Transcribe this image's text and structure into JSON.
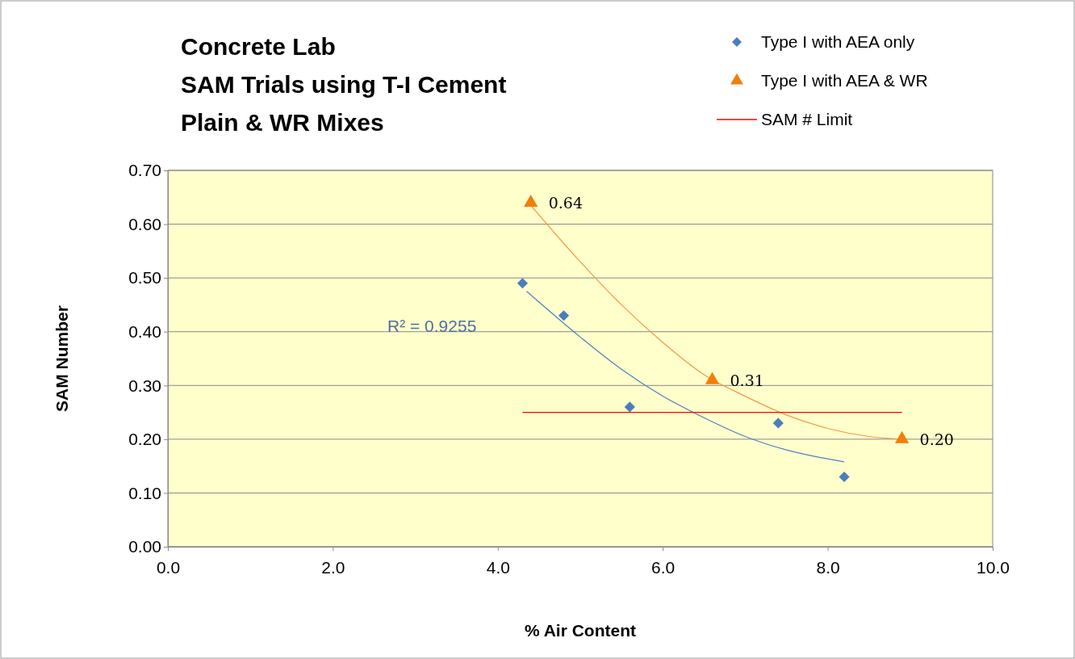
{
  "chart_data": {
    "type": "line",
    "title": "Concrete Lab",
    "subtitle": "SAM Trials using T-I Cement\nPlain & WR Mixes",
    "xlabel": "% Air Content",
    "ylabel": "SAM Number",
    "xlim": [
      0,
      10
    ],
    "xticks": [
      {
        "value": 0,
        "label": "0.0"
      },
      {
        "value": 2,
        "label": "2.0"
      },
      {
        "value": 4,
        "label": "4.0"
      },
      {
        "value": 6,
        "label": "6.0"
      },
      {
        "value": 8,
        "label": "8.0"
      },
      {
        "value": 10,
        "label": "10.0"
      }
    ],
    "ylim": [
      0,
      0.7
    ],
    "yticks": [
      {
        "value": 0,
        "label": "0.00"
      },
      {
        "value": 0.1,
        "label": "0.10"
      },
      {
        "value": 0.2,
        "label": "0.20"
      },
      {
        "value": 0.3,
        "label": "0.30"
      },
      {
        "value": 0.4,
        "label": "0.40"
      },
      {
        "value": 0.5,
        "label": "0.50"
      },
      {
        "value": 0.6,
        "label": "0.60"
      },
      {
        "value": 0.7,
        "label": "0.70"
      }
    ],
    "grid": "y",
    "legend": "top right",
    "series": [
      {
        "marker": "none",
        "color": "#4f81bd",
        "x": [
          4.35,
          5.0,
          5.5,
          6.0,
          6.5,
          7.0,
          7.5,
          8.2
        ],
        "values": [
          0.475,
          0.39,
          0.33,
          0.28,
          0.24,
          0.205,
          0.18,
          0.158
        ]
      },
      {
        "marker": "none",
        "color": "#f79646",
        "x": [
          4.4,
          5.0,
          5.5,
          6.0,
          6.5,
          7.0,
          7.5,
          8.0,
          8.5,
          8.9
        ],
        "values": [
          0.635,
          0.53,
          0.45,
          0.38,
          0.32,
          0.28,
          0.245,
          0.22,
          0.205,
          0.2
        ]
      },
      {
        "name": "Type I with AEA only",
        "type": "scatter",
        "marker": "diamond",
        "color": "#4a7ebb",
        "x": [
          4.3,
          4.8,
          5.6,
          7.4,
          8.2
        ],
        "values": [
          0.49,
          0.43,
          0.26,
          0.23,
          0.13
        ]
      },
      {
        "name": "Type I with AEA & WR",
        "type": "scatter",
        "marker": "triangle",
        "color": "#f07f09",
        "x": [
          4.4,
          6.6,
          8.9
        ],
        "values": [
          0.64,
          0.31,
          0.2
        ],
        "value_labels": [
          "0.64",
          "0.31",
          "0.20"
        ]
      },
      {
        "name": "SAM # Limit",
        "marker": "none",
        "type": "line",
        "color": "#ff0000",
        "x": [
          4.3,
          8.9
        ],
        "values": [
          0.25,
          0.25
        ]
      }
    ],
    "annotations": [
      "R² = 0.9255"
    ]
  }
}
